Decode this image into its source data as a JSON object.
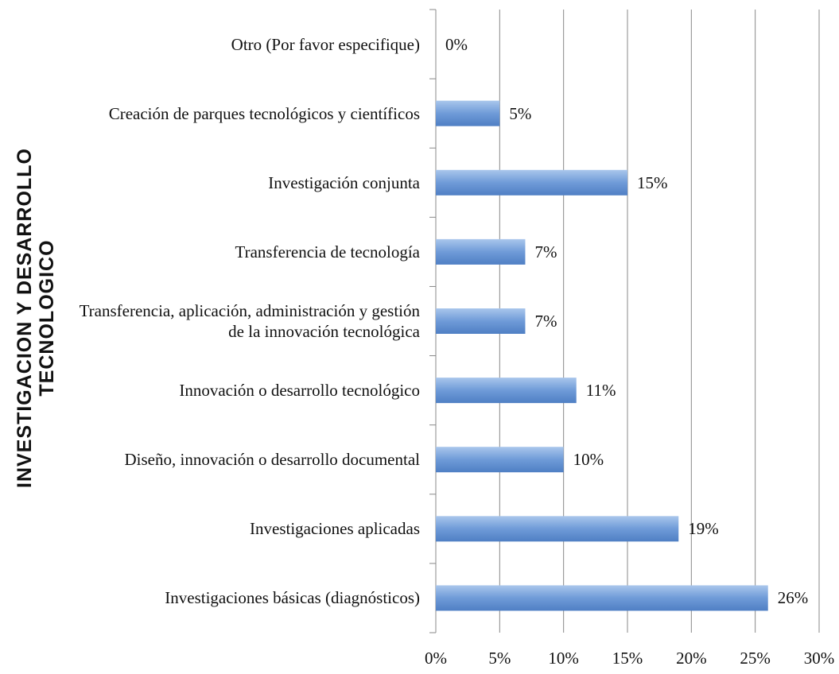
{
  "chart_data": {
    "type": "barh",
    "y_label": "INVESTIGACION Y DESARROLLO TECNOLOGICO",
    "categories": [
      "Otro (Por favor especifique)",
      "Creación de parques tecnológicos y científicos",
      "Investigación conjunta",
      "Transferencia de tecnología",
      "Transferencia, aplicación, administración y gestión de la innovación tecnológica",
      "Innovación o desarrollo tecnológico",
      "Diseño, innovación o desarrollo documental",
      "Investigaciones aplicadas",
      "Investigaciones básicas (diagnósticos)"
    ],
    "values": [
      0,
      5,
      15,
      7,
      7,
      11,
      10,
      19,
      26
    ],
    "value_labels": [
      "0%",
      "5%",
      "15%",
      "7%",
      "7%",
      "11%",
      "10%",
      "19%",
      "26%"
    ],
    "color": "#4f81bd",
    "xlim": [
      0,
      30
    ],
    "xticks": [
      {
        "value": 0,
        "label": "0%"
      },
      {
        "value": 5,
        "label": "5%"
      },
      {
        "value": 10,
        "label": "10%"
      },
      {
        "value": 15,
        "label": "15%"
      },
      {
        "value": 20,
        "label": "20%"
      },
      {
        "value": 25,
        "label": "25%"
      },
      {
        "value": 30,
        "label": "30%"
      }
    ],
    "grid": true
  }
}
